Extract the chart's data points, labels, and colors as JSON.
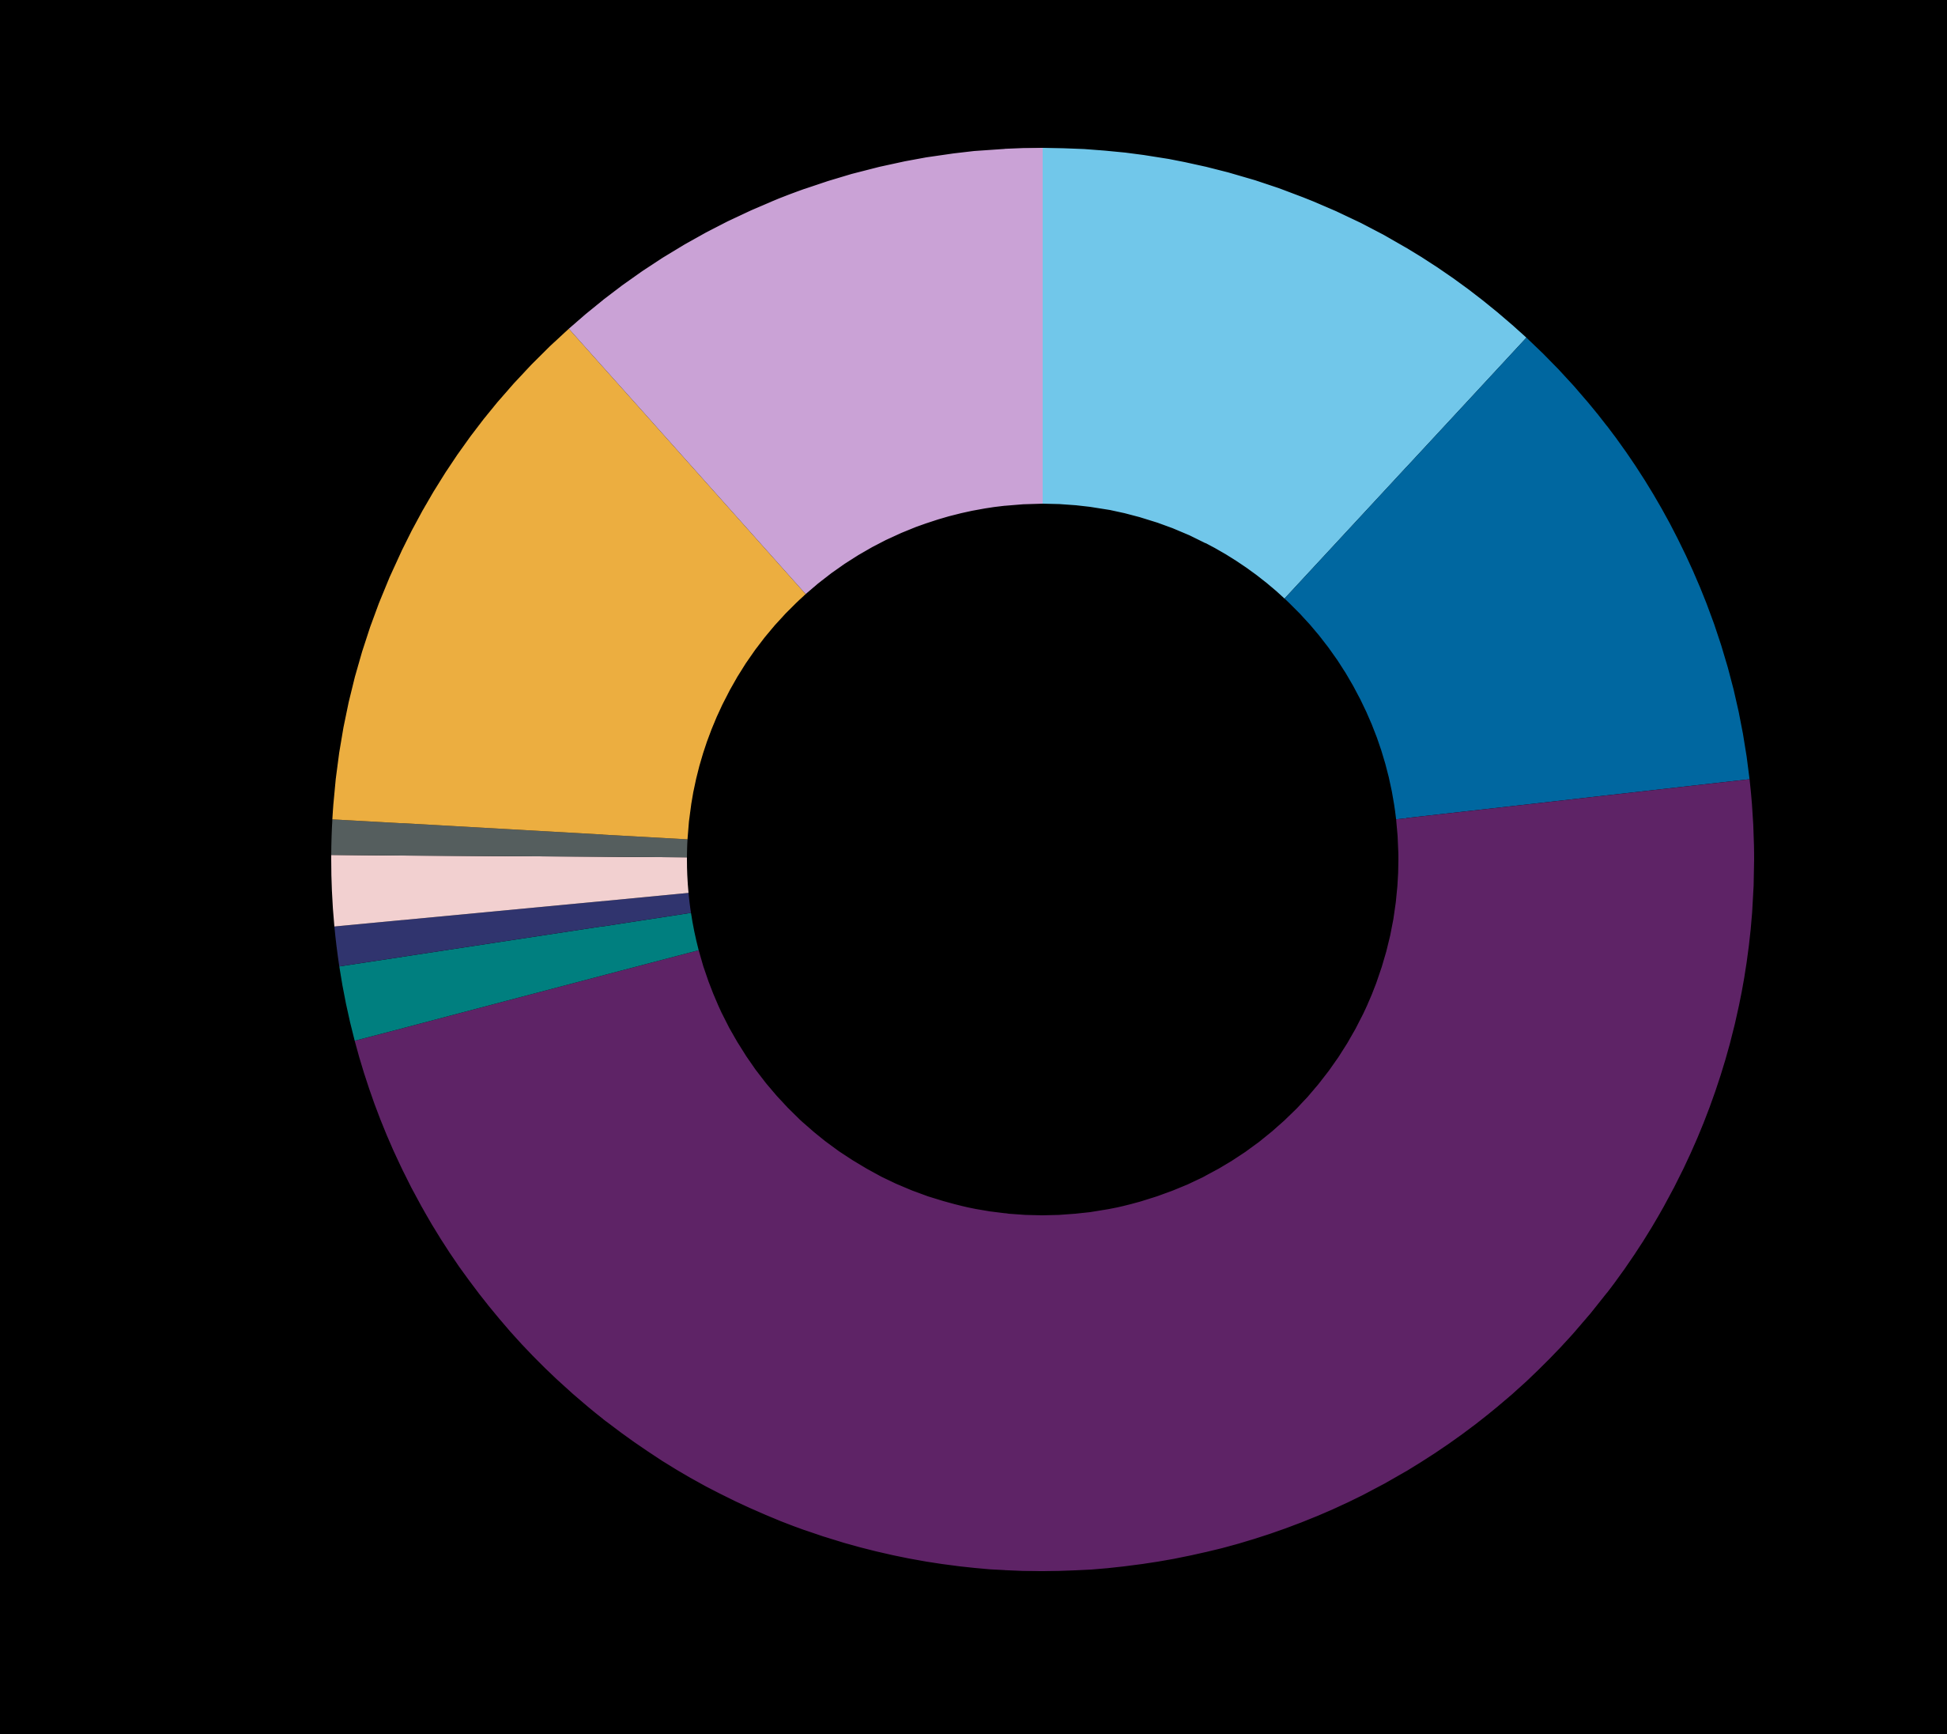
{
  "chart_data": {
    "type": "donut",
    "categories": [
      null,
      null,
      null,
      null,
      null,
      null,
      null,
      null,
      null
    ],
    "values": [
      11.9,
      11.3,
      47.7,
      1.7,
      0.9,
      1.6,
      0.8,
      12.5,
      11.6
    ],
    "colors": [
      "#71c7ea",
      "#0067a0",
      "#5e2366",
      "#007f7f",
      "#30346e",
      "#f2d0d0",
      "#555e5e",
      "#ecae40",
      "#caa2d6"
    ],
    "legend": false
  }
}
